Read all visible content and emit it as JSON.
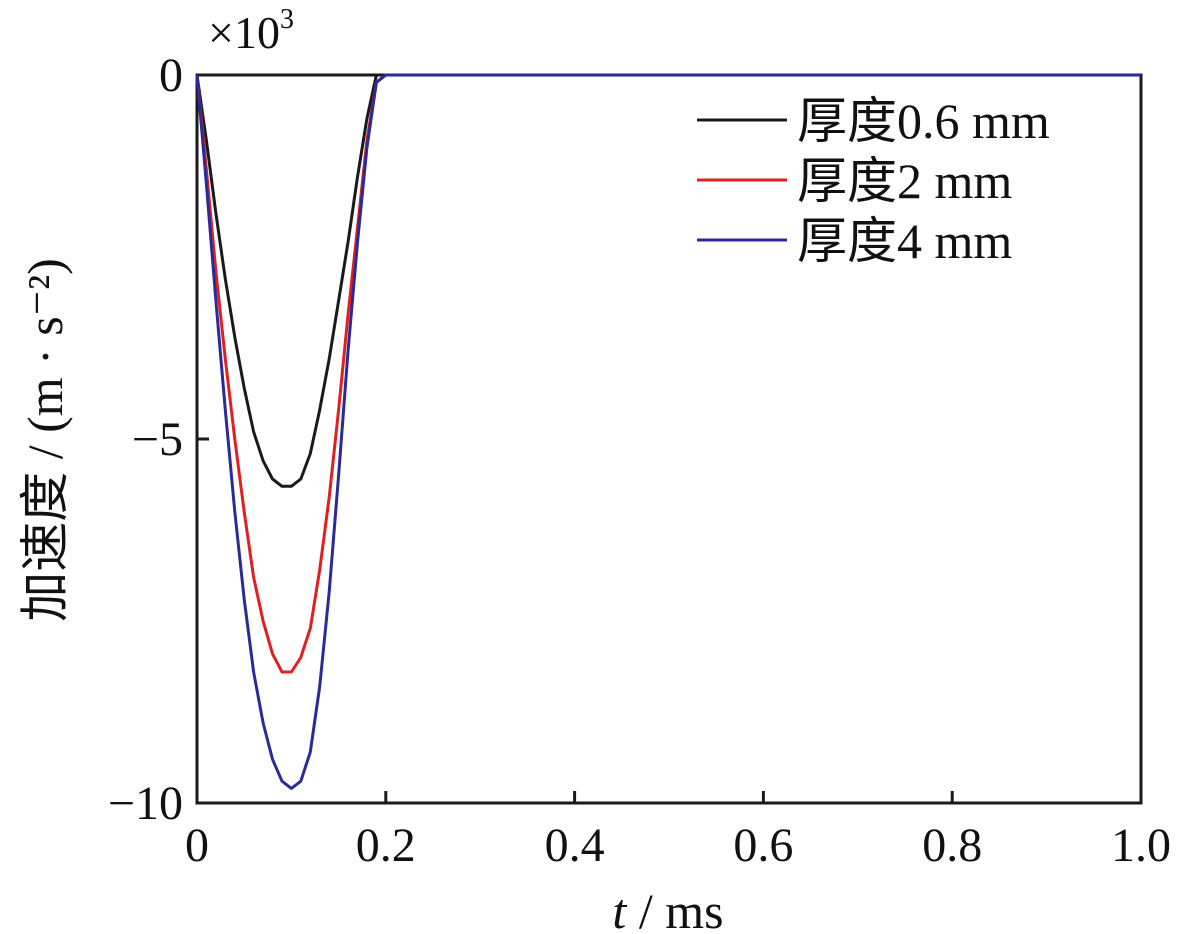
{
  "chart_data": {
    "type": "line",
    "xlabel_var": "t",
    "xlabel_unit": " / ms",
    "ylabel": "加速度 / (m · s⁻²)",
    "y_multiplier": "×10",
    "y_multiplier_exp": "3",
    "xlim": [
      0,
      1.0
    ],
    "ylim": [
      -10,
      0
    ],
    "x_ticks": [
      0,
      0.2,
      0.4,
      0.6,
      0.8,
      1.0
    ],
    "x_tick_labels": [
      "0",
      "0.2",
      "0.4",
      "0.6",
      "0.8",
      "1.0"
    ],
    "y_ticks": [
      0,
      -5,
      -10
    ],
    "y_tick_labels": [
      "0",
      "−5",
      "−10"
    ],
    "grid": false,
    "legend_position": "top-right",
    "series": [
      {
        "name": "厚度0.6 mm",
        "color": "#1a1a1a",
        "x": [
          0,
          0.01,
          0.02,
          0.03,
          0.04,
          0.05,
          0.06,
          0.07,
          0.08,
          0.09,
          0.1,
          0.11,
          0.12,
          0.13,
          0.14,
          0.15,
          0.16,
          0.17,
          0.18,
          0.19,
          0.2,
          0.25,
          0.4,
          0.6,
          0.8,
          1.0
        ],
        "y": [
          0,
          -0.9,
          -1.9,
          -2.8,
          -3.6,
          -4.3,
          -4.9,
          -5.3,
          -5.55,
          -5.65,
          -5.65,
          -5.55,
          -5.2,
          -4.6,
          -3.9,
          -3.1,
          -2.3,
          -1.4,
          -0.6,
          0,
          0,
          0,
          0,
          0,
          0,
          0
        ]
      },
      {
        "name": "厚度2 mm",
        "color": "#e02020",
        "x": [
          0,
          0.01,
          0.02,
          0.03,
          0.04,
          0.05,
          0.06,
          0.07,
          0.08,
          0.09,
          0.1,
          0.11,
          0.12,
          0.13,
          0.14,
          0.15,
          0.16,
          0.17,
          0.18,
          0.19,
          0.2,
          0.25,
          0.4,
          0.6,
          0.8,
          1.0
        ],
        "y": [
          0,
          -1.3,
          -2.7,
          -3.9,
          -5.0,
          -6.0,
          -6.9,
          -7.5,
          -7.95,
          -8.2,
          -8.2,
          -8.0,
          -7.6,
          -6.8,
          -5.8,
          -4.6,
          -3.3,
          -2.1,
          -0.9,
          -0.1,
          0,
          0,
          0,
          0,
          0,
          0
        ]
      },
      {
        "name": "厚度4 mm",
        "color": "#2a2a9a",
        "x": [
          0,
          0.01,
          0.02,
          0.03,
          0.04,
          0.05,
          0.06,
          0.07,
          0.08,
          0.09,
          0.1,
          0.11,
          0.12,
          0.13,
          0.14,
          0.15,
          0.16,
          0.17,
          0.18,
          0.19,
          0.2,
          0.25,
          0.4,
          0.6,
          0.8,
          1.0
        ],
        "y": [
          0,
          -1.5,
          -3.1,
          -4.6,
          -6.0,
          -7.2,
          -8.2,
          -8.9,
          -9.4,
          -9.7,
          -9.8,
          -9.7,
          -9.3,
          -8.4,
          -7.1,
          -5.5,
          -3.8,
          -2.3,
          -1.0,
          -0.1,
          0,
          0,
          0,
          0,
          0,
          0
        ]
      }
    ]
  }
}
